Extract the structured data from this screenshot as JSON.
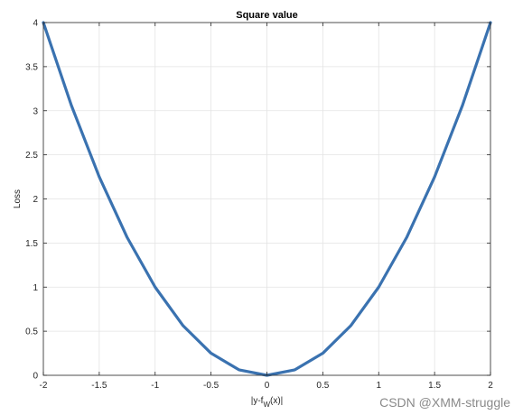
{
  "chart_data": {
    "type": "line",
    "title": "Square value",
    "xlabel": {
      "main": "|y-f",
      "subscript": "W",
      "suffix": "(x)|"
    },
    "ylabel": "Loss",
    "xlim": [
      -2,
      2
    ],
    "ylim": [
      0,
      4
    ],
    "xticks": [
      -2,
      -1.5,
      -1,
      -0.5,
      0,
      0.5,
      1,
      1.5,
      2
    ],
    "yticks": [
      0,
      0.5,
      1,
      1.5,
      2,
      2.5,
      3,
      3.5,
      4
    ],
    "xtick_labels": [
      "-2",
      "-1.5",
      "-1",
      "-0.5",
      "0",
      "0.5",
      "1",
      "1.5",
      "2"
    ],
    "ytick_labels": [
      "0",
      "0.5",
      "1",
      "1.5",
      "2",
      "2.5",
      "3",
      "3.5",
      "4"
    ],
    "grid": true,
    "series": [
      {
        "color": "#3a72b0",
        "x": [
          -2,
          -1.75,
          -1.5,
          -1.25,
          -1,
          -0.75,
          -0.5,
          -0.25,
          0,
          0.25,
          0.5,
          0.75,
          1,
          1.25,
          1.5,
          1.75,
          2
        ],
        "y": [
          4,
          3.0625,
          2.25,
          1.5625,
          1,
          0.5625,
          0.25,
          0.0625,
          0,
          0.0625,
          0.25,
          0.5625,
          1,
          1.5625,
          2.25,
          3.0625,
          4
        ]
      }
    ]
  },
  "watermark": "CSDN @XMM-struggle"
}
